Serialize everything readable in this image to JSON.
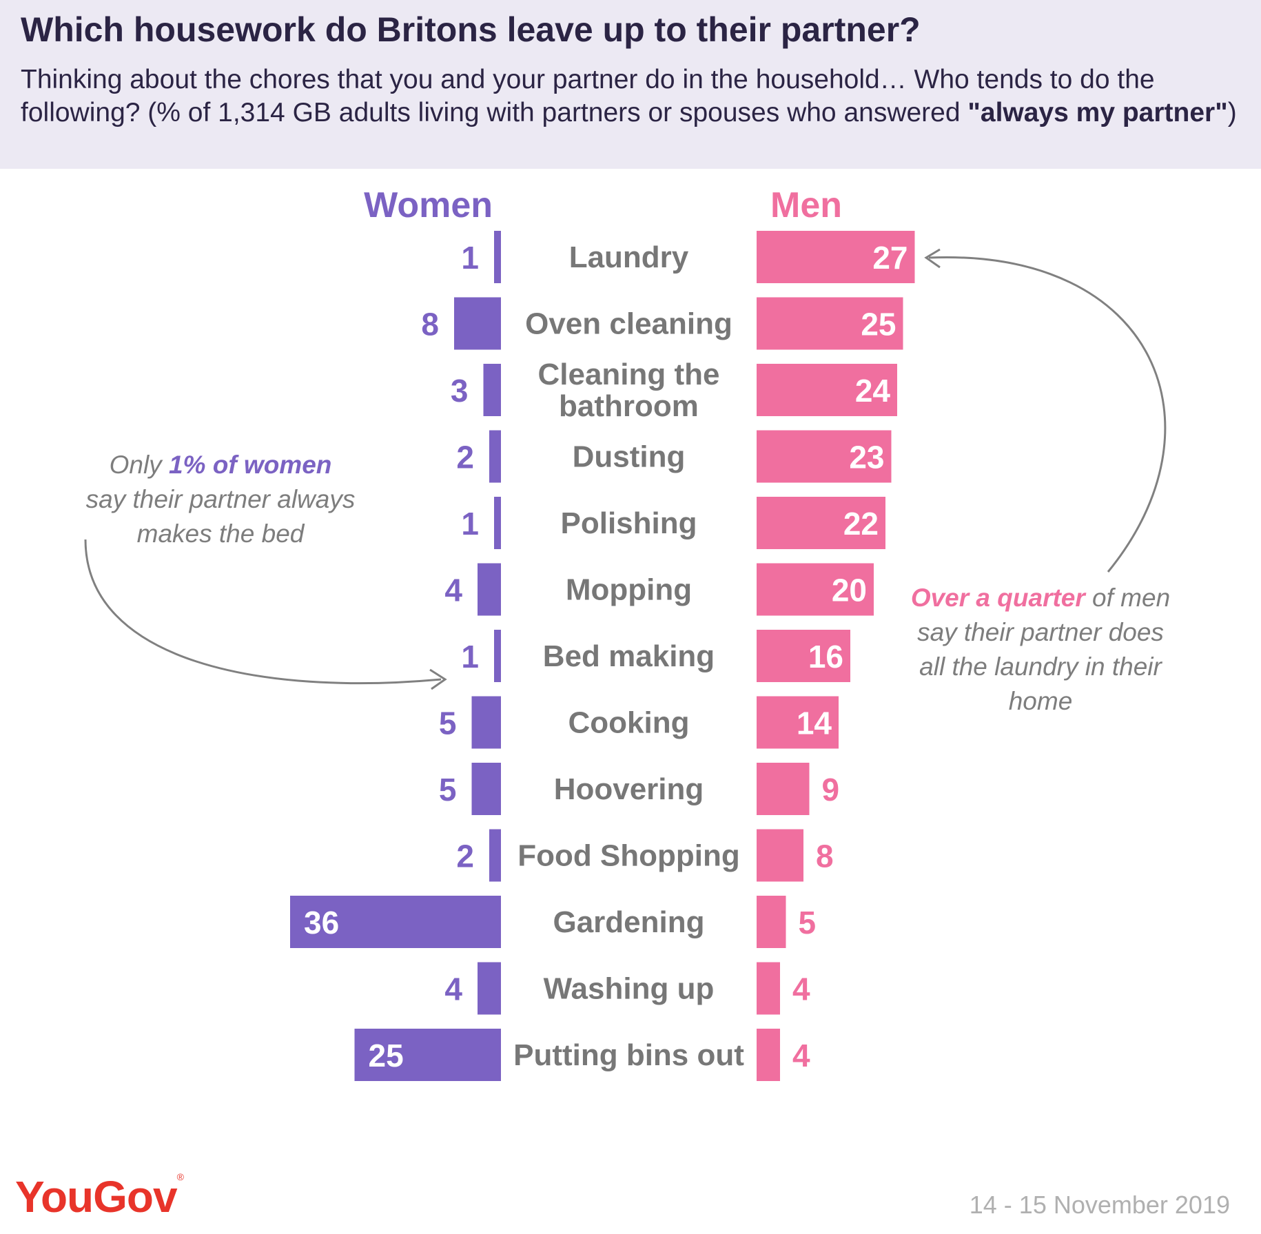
{
  "chart_data": {
    "type": "bar",
    "title": "Which housework do Britons leave up to their partner?",
    "subtitle": {
      "text": "Thinking about the chores that you and your partner do in the household… Who tends to do the following? (% of 1,314 GB adults living with partners or spouses who answered ",
      "emphasis": "\"always my partner\"",
      "close": ")"
    },
    "categories": [
      "Laundry",
      "Oven cleaning",
      "Cleaning the bathroom",
      "Dusting",
      "Polishing",
      "Mopping",
      "Bed making",
      "Cooking",
      "Hoovering",
      "Food Shopping",
      "Gardening",
      "Washing up",
      "Putting bins out"
    ],
    "series": [
      {
        "name": "Women",
        "color": "#7b62c3",
        "values": [
          1,
          8,
          3,
          2,
          1,
          4,
          1,
          5,
          5,
          2,
          36,
          4,
          25
        ]
      },
      {
        "name": "Men",
        "color": "#f06f9f",
        "values": [
          27,
          25,
          24,
          23,
          22,
          20,
          16,
          14,
          9,
          8,
          5,
          4,
          4
        ]
      }
    ],
    "annotations": {
      "women": {
        "pre": "Only ",
        "highlight": "1% of women",
        "post": "say their partner always makes the bed"
      },
      "men": {
        "highlight": "Over a quarter",
        "post": "of men say their partner does all the laundry in their home"
      }
    }
  },
  "source": {
    "logo": "YouGov",
    "date": "14 - 15 November 2019"
  }
}
